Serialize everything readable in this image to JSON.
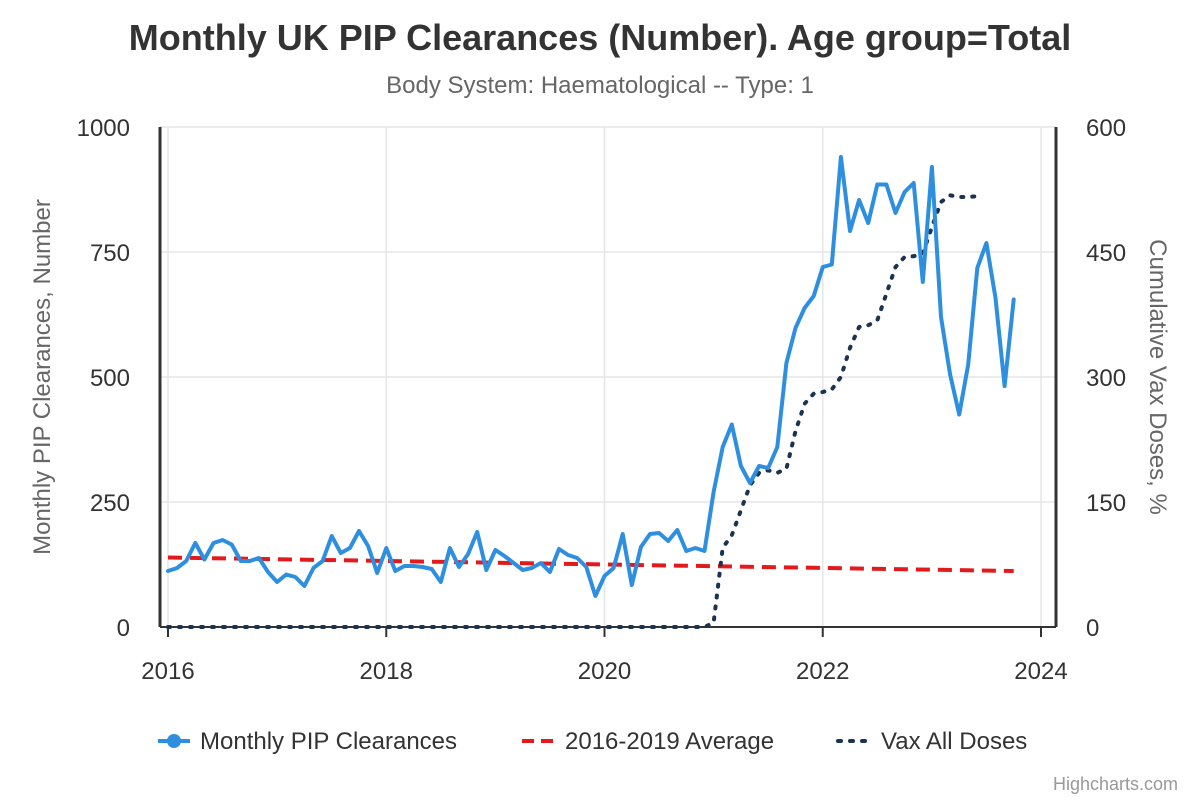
{
  "chart_data": {
    "type": "line",
    "title": "Monthly UK PIP Clearances (Number). Age group=Total",
    "subtitle": "Body System: Haematological -- Type: 1",
    "ylabel": "Monthly PIP Clearances, Number",
    "y2label": "Cumulative Vax Doses, %",
    "ylim": [
      0,
      1000
    ],
    "y2lim": [
      0,
      600
    ],
    "xlim": [
      2016,
      2024
    ],
    "x_ticks": [
      "2016",
      "2018",
      "2020",
      "2022",
      "2024"
    ],
    "y_ticks": [
      "0",
      "250",
      "500",
      "750",
      "1000"
    ],
    "y2_ticks": [
      "0",
      "150",
      "300",
      "450",
      "600"
    ],
    "legend_position": "bottom",
    "credits": "Highcharts.com",
    "colors": {
      "pip": "#2e8fe0",
      "avg": "#e31a1c",
      "vax": "#1a3350"
    },
    "series": [
      {
        "name": "Monthly PIP Clearances",
        "axis": "left",
        "start": "2016-01",
        "values": [
          112,
          118,
          132,
          168,
          135,
          168,
          174,
          165,
          132,
          132,
          138,
          110,
          90,
          105,
          100,
          82,
          118,
          132,
          182,
          148,
          158,
          192,
          162,
          108,
          158,
          112,
          122,
          122,
          120,
          116,
          90,
          158,
          120,
          146,
          190,
          114,
          154,
          142,
          128,
          114,
          118,
          128,
          110,
          156,
          144,
          138,
          120,
          62,
          102,
          118,
          186,
          84,
          160,
          186,
          188,
          172,
          194,
          152,
          158,
          152,
          270,
          360,
          405,
          322,
          288,
          322,
          318,
          360,
          528,
          598,
          638,
          662,
          720,
          725,
          940,
          792,
          854,
          808,
          885,
          885,
          828,
          870,
          888,
          690,
          920,
          620,
          505,
          425,
          525,
          718,
          768,
          658,
          482,
          655
        ]
      },
      {
        "name": "2016-2019 Average",
        "axis": "left",
        "start": "2016-01",
        "end": "2023-10",
        "values": [
          139,
          112
        ]
      },
      {
        "name": "Vax All Doses",
        "axis": "right",
        "start": "2016-01",
        "values": [
          0,
          0,
          0,
          0,
          0,
          0,
          0,
          0,
          0,
          0,
          0,
          0,
          0,
          0,
          0,
          0,
          0,
          0,
          0,
          0,
          0,
          0,
          0,
          0,
          0,
          0,
          0,
          0,
          0,
          0,
          0,
          0,
          0,
          0,
          0,
          0,
          0,
          0,
          0,
          0,
          0,
          0,
          0,
          0,
          0,
          0,
          0,
          0,
          0,
          0,
          0,
          0,
          0,
          0,
          0,
          0,
          0,
          0,
          0,
          0,
          5,
          95,
          110,
          140,
          170,
          185,
          188,
          185,
          190,
          235,
          268,
          280,
          282,
          285,
          300,
          335,
          360,
          362,
          368,
          400,
          432,
          444,
          445,
          448,
          480,
          510,
          518,
          516,
          516,
          517
        ]
      }
    ]
  }
}
